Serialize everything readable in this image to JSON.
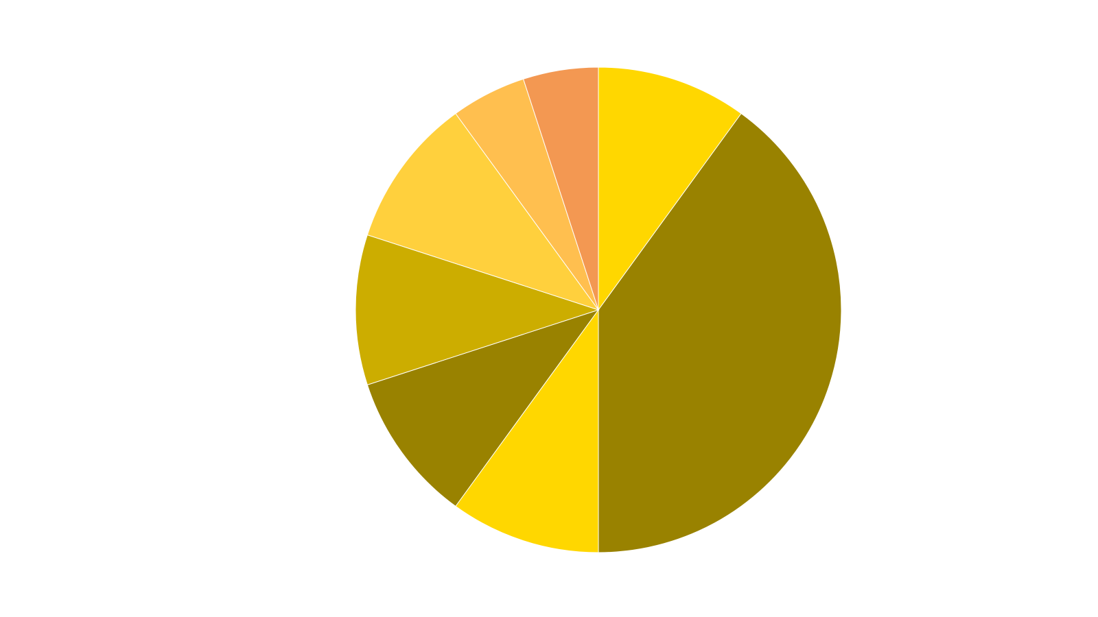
{
  "chart_data": {
    "type": "pie",
    "title": "",
    "start": "12 o'clock",
    "direction": "clockwise",
    "legend": "none",
    "slices": [
      {
        "value": 10,
        "color": "#FFD700"
      },
      {
        "value": 40,
        "color": "#998200"
      },
      {
        "value": 10,
        "color": "#FFD700"
      },
      {
        "value": 10,
        "color": "#998200"
      },
      {
        "value": 10,
        "color": "#CCAD00"
      },
      {
        "value": 10,
        "color": "#FFD03D"
      },
      {
        "value": 5,
        "color": "#FFBF4F"
      },
      {
        "value": 5,
        "color": "#F39852"
      }
    ]
  }
}
